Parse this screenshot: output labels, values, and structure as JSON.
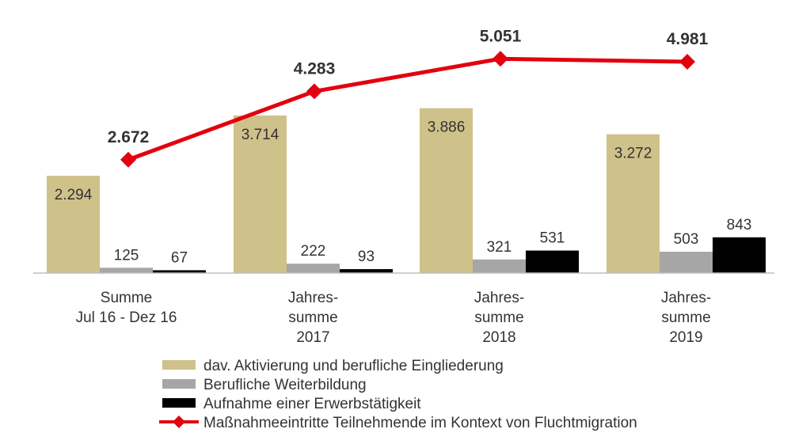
{
  "chart_data": {
    "type": "bar",
    "categories": [
      [
        "Summe",
        "Jul 16 - Dez 16"
      ],
      [
        "Jahres-",
        "summe",
        "2017"
      ],
      [
        "Jahres-",
        "summe",
        "2018"
      ],
      [
        "Jahres-",
        "summe",
        "2019"
      ]
    ],
    "series": [
      {
        "name": "dav. Aktivierung und berufliche Eingliederung",
        "kind": "bar",
        "color": "#cfc18a",
        "values": [
          2294,
          3714,
          3886,
          3272
        ],
        "labels": [
          "2.294",
          "3.714",
          "3.886",
          "3.272"
        ],
        "label_position": "inside"
      },
      {
        "name": "Berufliche Weiterbildung",
        "kind": "bar",
        "color": "#a6a6a6",
        "values": [
          125,
          222,
          321,
          503
        ],
        "labels": [
          "125",
          "222",
          "321",
          "503"
        ],
        "label_position": "above"
      },
      {
        "name": "Aufnahme einer Erwerbstätigkeit",
        "kind": "bar",
        "color": "#000000",
        "values": [
          67,
          93,
          531,
          843
        ],
        "labels": [
          "67",
          "93",
          "531",
          "843"
        ],
        "label_position": "above"
      },
      {
        "name": "Maßnahmeeintritte Teilnehmende im Kontext von Fluchtmigration",
        "kind": "line",
        "color": "#e3000f",
        "marker": "diamond",
        "values": [
          2672,
          4283,
          5051,
          4981
        ],
        "labels": [
          "2.672",
          "4.283",
          "5.051",
          "4.981"
        ],
        "label_position": "above"
      }
    ],
    "ylim": [
      0,
      5800
    ],
    "grid": false,
    "legend_position": "bottom"
  }
}
